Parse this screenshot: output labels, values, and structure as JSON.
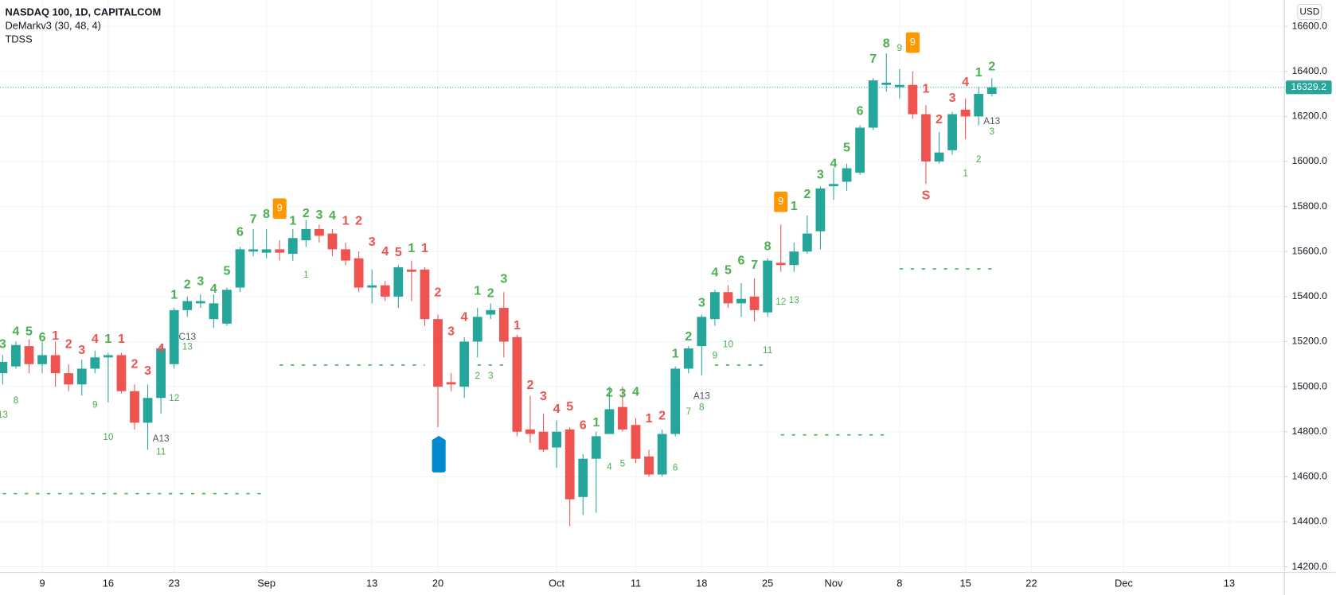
{
  "chart_data": {
    "type": "candlestick",
    "title": "NASDAQ 100, 1D, CAPITALCOM",
    "indicators": [
      "DeMarkv3 (30, 48, 4)",
      "TDSS"
    ],
    "currency": "USD",
    "up_color": "#26a69a",
    "down_color": "#ef5350",
    "grid": true,
    "open": [
      15060,
      15090,
      15180,
      15100,
      15140,
      15060,
      15010,
      15080,
      15130,
      15140,
      14980,
      14840,
      14950,
      15100,
      15340,
      15370,
      15300,
      15280,
      15440,
      15600,
      15595,
      15610,
      15590,
      15650,
      15700,
      15680,
      15610,
      15570,
      15440,
      15450,
      15400,
      15520,
      15520,
      15300,
      15020,
      15000,
      15200,
      15320,
      15350,
      15220,
      14810,
      14800,
      14730,
      14810,
      14510,
      14680,
      14790,
      14910,
      14830,
      14690,
      14610,
      14790,
      15080,
      15180,
      15300,
      15420,
      15370,
      15400,
      15330,
      15550,
      15540,
      15600,
      15690,
      15890,
      15910,
      15950,
      16150,
      16340,
      16330,
      16340,
      16210,
      16000,
      16050,
      16230,
      16200,
      16300
    ],
    "high": [
      15140,
      15200,
      15210,
      15200,
      15200,
      15100,
      15120,
      15160,
      15150,
      15150,
      15010,
      15010,
      15180,
      15350,
      15400,
      15410,
      15410,
      15440,
      15620,
      15700,
      15700,
      15650,
      15700,
      15740,
      15720,
      15700,
      15640,
      15600,
      15520,
      15470,
      15540,
      15560,
      15530,
      15320,
      15060,
      15220,
      15350,
      15370,
      15420,
      15230,
      14960,
      14880,
      14850,
      14820,
      14700,
      14800,
      15000,
      15000,
      14860,
      14720,
      14810,
      15090,
      15180,
      15320,
      15430,
      15450,
      15460,
      15480,
      15570,
      15720,
      15640,
      15760,
      15890,
      15970,
      15990,
      16160,
      16370,
      16480,
      16410,
      16400,
      16250,
      16130,
      16220,
      16280,
      16330,
      16370
    ],
    "low": [
      15010,
      15080,
      15060,
      15060,
      15000,
      14980,
      14960,
      15060,
      14930,
      14970,
      14810,
      14720,
      14880,
      15080,
      15310,
      15350,
      15260,
      15270,
      15420,
      15580,
      15570,
      15560,
      15560,
      15620,
      15640,
      15580,
      15540,
      15420,
      15370,
      15380,
      15350,
      15380,
      15270,
      14820,
      14980,
      14950,
      15130,
      15300,
      15130,
      14780,
      14750,
      14710,
      14640,
      14380,
      14430,
      14440,
      14790,
      14800,
      14660,
      14600,
      14600,
      14780,
      15060,
      15050,
      15270,
      15350,
      15310,
      15290,
      15310,
      15510,
      15510,
      15590,
      15610,
      15830,
      15870,
      15940,
      16140,
      16310,
      16280,
      16190,
      15900,
      15990,
      16030,
      16100,
      16160,
      16290
    ],
    "close": [
      15110,
      15185,
      15100,
      15140,
      15060,
      15010,
      15080,
      15130,
      15140,
      14980,
      14840,
      14950,
      15170,
      15340,
      15380,
      15380,
      15370,
      15430,
      15610,
      15610,
      15610,
      15595,
      15660,
      15700,
      15670,
      15610,
      15560,
      15440,
      15450,
      15400,
      15530,
      15510,
      15300,
      15000,
      15010,
      15200,
      15310,
      15340,
      15200,
      14800,
      14790,
      14720,
      14800,
      14500,
      14680,
      14780,
      14900,
      14810,
      14680,
      14610,
      14790,
      15080,
      15170,
      15310,
      15420,
      15370,
      15390,
      15340,
      15560,
      15540,
      15600,
      15680,
      15880,
      15900,
      15970,
      16150,
      16360,
      16350,
      16340,
      16210,
      16000,
      16040,
      16210,
      16200,
      16300,
      16329.2
    ],
    "last_price": 16329.2,
    "xlim": [
      -0.2,
      97.15
    ],
    "ylim": [
      14177,
      16717
    ],
    "xticks": [
      {
        "value": 3,
        "label": "9"
      },
      {
        "value": 8,
        "label": "16"
      },
      {
        "value": 13,
        "label": "23"
      },
      {
        "value": 20,
        "label": "Sep"
      },
      {
        "value": 28,
        "label": "13"
      },
      {
        "value": 33,
        "label": "20"
      },
      {
        "value": 42,
        "label": "Oct"
      },
      {
        "value": 48,
        "label": "11"
      },
      {
        "value": 53,
        "label": "18"
      },
      {
        "value": 58,
        "label": "25"
      },
      {
        "value": 63,
        "label": "Nov"
      },
      {
        "value": 68,
        "label": "8"
      },
      {
        "value": 73,
        "label": "15"
      },
      {
        "value": 78,
        "label": "22"
      },
      {
        "value": 85,
        "label": "Dec"
      },
      {
        "value": 93,
        "label": "13"
      }
    ],
    "yticks": [
      {
        "value": 14200,
        "label": "14200.0"
      },
      {
        "value": 14400,
        "label": "14400.0"
      },
      {
        "value": 14600,
        "label": "14600.0"
      },
      {
        "value": 14800,
        "label": "14800.0"
      },
      {
        "value": 15000,
        "label": "15000.0"
      },
      {
        "value": 15200,
        "label": "15200.0"
      },
      {
        "value": 15400,
        "label": "15400.0"
      },
      {
        "value": 15600,
        "label": "15600.0"
      },
      {
        "value": 15800,
        "label": "15800.0"
      },
      {
        "value": 16000,
        "label": "16000.0"
      },
      {
        "value": 16200,
        "label": "16200.0"
      },
      {
        "value": 16400,
        "label": "16400.0"
      },
      {
        "value": 16600,
        "label": "16600.0"
      }
    ],
    "levels": {
      "color": "#4caf50",
      "items": [
        {
          "value": 14525,
          "x": [
            0,
            20
          ]
        },
        {
          "value": 15096,
          "x": [
            21,
            32
          ]
        },
        {
          "value": 15096,
          "x": [
            36,
            38
          ]
        },
        {
          "value": 15096,
          "x": [
            54,
            58
          ]
        },
        {
          "value": 14786,
          "x": [
            59,
            67
          ]
        },
        {
          "value": 15523,
          "x": [
            68,
            75
          ]
        }
      ]
    },
    "setup_up": {
      "color": "#4caf50",
      "items": [
        {
          "text": "3",
          "x": 0,
          "y": 15186
        },
        {
          "text": "4",
          "x": 1,
          "y": 15243
        },
        {
          "text": "5",
          "x": 2,
          "y": 15243
        },
        {
          "text": "6",
          "x": 3,
          "y": 15216
        },
        {
          "text": "1",
          "x": 8,
          "y": 15209
        },
        {
          "text": "1",
          "x": 13,
          "y": 15405
        },
        {
          "text": "2",
          "x": 14,
          "y": 15451
        },
        {
          "text": "3",
          "x": 15,
          "y": 15466
        },
        {
          "text": "4",
          "x": 16,
          "y": 15432
        },
        {
          "text": "5",
          "x": 17,
          "y": 15511
        },
        {
          "text": "6",
          "x": 18,
          "y": 15685
        },
        {
          "text": "7",
          "x": 19,
          "y": 15742
        },
        {
          "text": "8",
          "x": 20,
          "y": 15765
        },
        {
          "text": "1",
          "x": 22,
          "y": 15734
        },
        {
          "text": "2",
          "x": 23,
          "y": 15768
        },
        {
          "text": "3",
          "x": 24,
          "y": 15761
        },
        {
          "text": "4",
          "x": 25,
          "y": 15757
        },
        {
          "text": "1",
          "x": 31,
          "y": 15613
        },
        {
          "text": "1",
          "x": 36,
          "y": 15424
        },
        {
          "text": "2",
          "x": 37,
          "y": 15413
        },
        {
          "text": "3",
          "x": 38,
          "y": 15477
        },
        {
          "text": "1",
          "x": 45,
          "y": 14838
        },
        {
          "text": "2",
          "x": 46,
          "y": 14971
        },
        {
          "text": "3",
          "x": 47,
          "y": 14967
        },
        {
          "text": "4",
          "x": 48,
          "y": 14975
        },
        {
          "text": "1",
          "x": 51,
          "y": 15145
        },
        {
          "text": "2",
          "x": 52,
          "y": 15220
        },
        {
          "text": "3",
          "x": 53,
          "y": 15371
        },
        {
          "text": "4",
          "x": 54,
          "y": 15504
        },
        {
          "text": "5",
          "x": 55,
          "y": 15515
        },
        {
          "text": "6",
          "x": 56,
          "y": 15557
        },
        {
          "text": "7",
          "x": 57,
          "y": 15538
        },
        {
          "text": "8",
          "x": 58,
          "y": 15621
        },
        {
          "text": "1",
          "x": 60,
          "y": 15799
        },
        {
          "text": "2",
          "x": 61,
          "y": 15852
        },
        {
          "text": "3",
          "x": 62,
          "y": 15939
        },
        {
          "text": "4",
          "x": 63,
          "y": 15988
        },
        {
          "text": "5",
          "x": 64,
          "y": 16059
        },
        {
          "text": "6",
          "x": 65,
          "y": 16222
        },
        {
          "text": "7",
          "x": 66,
          "y": 16453
        },
        {
          "text": "8",
          "x": 67,
          "y": 16521
        },
        {
          "text": "1",
          "x": 74,
          "y": 16392
        },
        {
          "text": "2",
          "x": 75,
          "y": 16419
        }
      ]
    },
    "setup_down": {
      "color": "#ef5350",
      "items": [
        {
          "text": "1",
          "x": 4,
          "y": 15224
        },
        {
          "text": "2",
          "x": 5,
          "y": 15186
        },
        {
          "text": "3",
          "x": 6,
          "y": 15160
        },
        {
          "text": "4",
          "x": 7,
          "y": 15209
        },
        {
          "text": "1",
          "x": 9,
          "y": 15209
        },
        {
          "text": "2",
          "x": 10,
          "y": 15099
        },
        {
          "text": "3",
          "x": 11,
          "y": 15069
        },
        {
          "text": "4",
          "x": 12,
          "y": 15167
        },
        {
          "text": "1",
          "x": 26,
          "y": 15734
        },
        {
          "text": "2",
          "x": 27,
          "y": 15734
        },
        {
          "text": "3",
          "x": 28,
          "y": 15640
        },
        {
          "text": "4",
          "x": 29,
          "y": 15598
        },
        {
          "text": "5",
          "x": 30,
          "y": 15594
        },
        {
          "text": "1",
          "x": 32,
          "y": 15613
        },
        {
          "text": "2",
          "x": 33,
          "y": 15417
        },
        {
          "text": "3",
          "x": 34,
          "y": 15243
        },
        {
          "text": "4",
          "x": 35,
          "y": 15307
        },
        {
          "text": "1",
          "x": 39,
          "y": 15269
        },
        {
          "text": "2",
          "x": 40,
          "y": 15004
        },
        {
          "text": "3",
          "x": 41,
          "y": 14956
        },
        {
          "text": "4",
          "x": 42,
          "y": 14899
        },
        {
          "text": "5",
          "x": 43,
          "y": 14910
        },
        {
          "text": "6",
          "x": 44,
          "y": 14827
        },
        {
          "text": "1",
          "x": 49,
          "y": 14857
        },
        {
          "text": "2",
          "x": 50,
          "y": 14869
        },
        {
          "text": "1",
          "x": 70,
          "y": 16320
        },
        {
          "text": "2",
          "x": 71,
          "y": 16184
        },
        {
          "text": "3",
          "x": 72,
          "y": 16279
        },
        {
          "text": "4",
          "x": 73,
          "y": 16350
        },
        {
          "text": "S",
          "x": 70,
          "y": 15848
        }
      ]
    },
    "perfected_nine": {
      "color": "#ff9800",
      "items": [
        {
          "text": "9",
          "x": 21,
          "y": 15791
        },
        {
          "text": "9",
          "x": 59,
          "y": 15821
        },
        {
          "text": "9",
          "x": 69,
          "y": 16528
        }
      ]
    },
    "countdown": {
      "color": "#4caf50",
      "items": [
        {
          "text": "13",
          "x": 0,
          "y": 14873
        },
        {
          "text": "8",
          "x": 1,
          "y": 14937
        },
        {
          "text": "9",
          "x": 7,
          "y": 14918
        },
        {
          "text": "10",
          "x": 8,
          "y": 14774
        },
        {
          "text": "11",
          "x": 12,
          "y": 14710
        },
        {
          "text": "12",
          "x": 13,
          "y": 14948
        },
        {
          "text": "13",
          "x": 14,
          "y": 15175
        },
        {
          "text": "1",
          "x": 23,
          "y": 15496
        },
        {
          "text": "2",
          "x": 36,
          "y": 15046
        },
        {
          "text": "3",
          "x": 37,
          "y": 15046
        },
        {
          "text": "4",
          "x": 46,
          "y": 14642
        },
        {
          "text": "5",
          "x": 47,
          "y": 14657
        },
        {
          "text": "6",
          "x": 51,
          "y": 14638
        },
        {
          "text": "7",
          "x": 52,
          "y": 14888
        },
        {
          "text": "8",
          "x": 53,
          "y": 14907
        },
        {
          "text": "9",
          "x": 54,
          "y": 15137
        },
        {
          "text": "10",
          "x": 55,
          "y": 15186
        },
        {
          "text": "11",
          "x": 58,
          "y": 15160
        },
        {
          "text": "12",
          "x": 59,
          "y": 15375
        },
        {
          "text": "13",
          "x": 60,
          "y": 15383
        },
        {
          "text": "9",
          "x": 68,
          "y": 16502
        },
        {
          "text": "1",
          "x": 73,
          "y": 15946
        },
        {
          "text": "2",
          "x": 74,
          "y": 16007
        },
        {
          "text": "3",
          "x": 75,
          "y": 16131
        }
      ]
    },
    "countdown_marks": {
      "color": "#555555",
      "items": [
        {
          "text": "C13",
          "x": 14,
          "y": 15220
        },
        {
          "text": "A13",
          "x": 12,
          "y": 14767
        },
        {
          "text": "A13",
          "x": 53,
          "y": 14956
        },
        {
          "text": "A13",
          "x": 75,
          "y": 16177
        }
      ]
    }
  }
}
